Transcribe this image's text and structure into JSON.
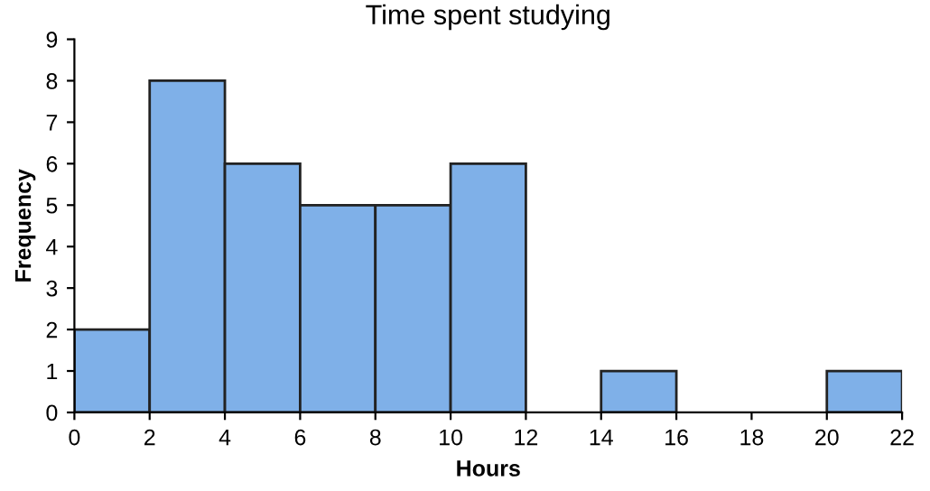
{
  "chart_data": {
    "type": "histogram",
    "title": "Time spent studying",
    "xlabel": "Hours",
    "ylabel": "Frequency",
    "bins": [
      0,
      2,
      4,
      6,
      8,
      10,
      12,
      14,
      16,
      18,
      20,
      22
    ],
    "values": [
      2,
      8,
      6,
      5,
      5,
      6,
      0,
      1,
      0,
      0,
      1
    ],
    "color": "#7fb0e8",
    "xlim": [
      0,
      22
    ],
    "ylim": [
      0,
      9
    ],
    "xticks": [
      0,
      2,
      4,
      6,
      8,
      10,
      12,
      14,
      16,
      18,
      20,
      22
    ],
    "yticks": [
      0,
      1,
      2,
      3,
      4,
      5,
      6,
      7,
      8,
      9
    ],
    "grid": false
  }
}
